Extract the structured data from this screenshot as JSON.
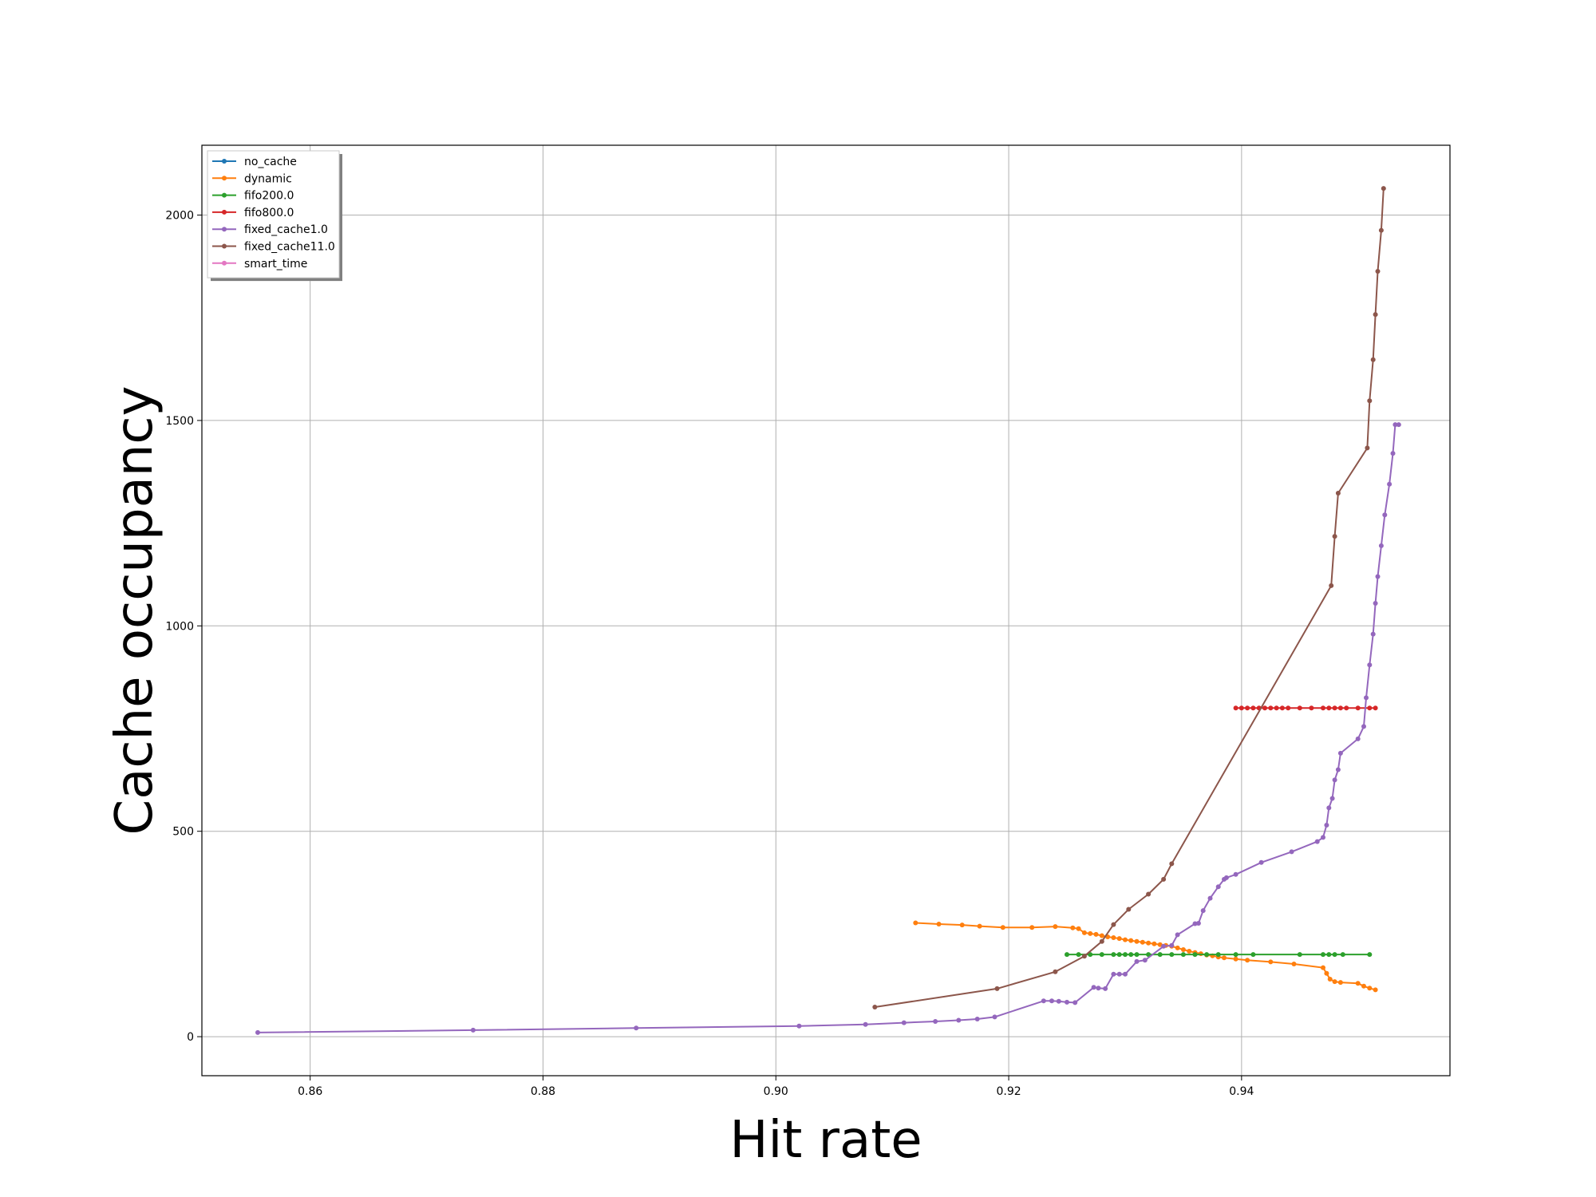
{
  "chart_data": {
    "type": "line",
    "title": "",
    "xlabel": "Hit rate",
    "ylabel": "Cache occupancy",
    "xlim": [
      0.8507,
      0.9579
    ],
    "ylim": [
      -95,
      2170
    ],
    "xticks": [
      0.86,
      0.88,
      0.9,
      0.92,
      0.94
    ],
    "xtick_labels": [
      "0.86",
      "0.88",
      "0.90",
      "0.92",
      "0.94"
    ],
    "yticks": [
      0,
      500,
      1000,
      1500,
      2000
    ],
    "ytick_labels": [
      "0",
      "500",
      "1000",
      "1500",
      "2000"
    ],
    "grid": true,
    "legend_position": "upper-left",
    "series": [
      {
        "name": "no_cache",
        "color": "#1f77b4",
        "x": [],
        "y": []
      },
      {
        "name": "dynamic",
        "color": "#ff7f0e",
        "x": [
          0.912,
          0.914,
          0.916,
          0.9175,
          0.9195,
          0.922,
          0.924,
          0.9255,
          0.926,
          0.9265,
          0.927,
          0.9275,
          0.928,
          0.9285,
          0.929,
          0.9295,
          0.93,
          0.9305,
          0.931,
          0.9315,
          0.932,
          0.9325,
          0.933,
          0.9335,
          0.934,
          0.9345,
          0.935,
          0.9355,
          0.936,
          0.9365,
          0.937,
          0.9375,
          0.938,
          0.9385,
          0.9395,
          0.9405,
          0.9425,
          0.9445,
          0.947,
          0.9473,
          0.9476,
          0.948,
          0.9485,
          0.95,
          0.9505,
          0.951,
          0.9515
        ],
        "y": [
          277,
          274,
          272,
          269,
          266,
          266,
          268,
          265,
          263,
          253,
          251,
          249,
          246,
          243,
          241,
          239,
          236,
          234,
          232,
          230,
          228,
          226,
          224,
          222,
          220,
          216,
          212,
          208,
          205,
          202,
          199,
          197,
          194,
          192,
          189,
          186,
          182,
          177,
          168,
          154,
          140,
          134,
          132,
          130,
          123,
          118,
          114
        ]
      },
      {
        "name": "fifo200.0",
        "color": "#2ca02c",
        "x": [
          0.925,
          0.926,
          0.927,
          0.928,
          0.929,
          0.9295,
          0.93,
          0.9305,
          0.931,
          0.932,
          0.933,
          0.934,
          0.935,
          0.936,
          0.937,
          0.938,
          0.9395,
          0.941,
          0.945,
          0.947,
          0.9475,
          0.948,
          0.9487,
          0.951
        ],
        "y": [
          200,
          200,
          200,
          200,
          200,
          200,
          200,
          200,
          200,
          200,
          200,
          200,
          200,
          200,
          200,
          200,
          200,
          200,
          200,
          200,
          200,
          200,
          200,
          200
        ]
      },
      {
        "name": "fifo800.0",
        "color": "#d62728",
        "x": [
          0.9395,
          0.94,
          0.9405,
          0.941,
          0.9415,
          0.942,
          0.9425,
          0.943,
          0.9435,
          0.944,
          0.945,
          0.946,
          0.947,
          0.9475,
          0.948,
          0.9485,
          0.949,
          0.95,
          0.951,
          0.9515
        ],
        "y": [
          800,
          800,
          800,
          800,
          800,
          800,
          800,
          800,
          800,
          800,
          800,
          800,
          800,
          800,
          800,
          800,
          800,
          800,
          800,
          800
        ]
      },
      {
        "name": "fixed_cache1.0",
        "color": "#9467bd",
        "x": [
          0.8555,
          0.874,
          0.888,
          0.902,
          0.9077,
          0.911,
          0.9137,
          0.9157,
          0.9173,
          0.9188,
          0.923,
          0.9237,
          0.9243,
          0.925,
          0.9257,
          0.9273,
          0.9277,
          0.9283,
          0.929,
          0.9295,
          0.93,
          0.931,
          0.9317,
          0.9333,
          0.934,
          0.9345,
          0.936,
          0.9363,
          0.9367,
          0.9373,
          0.938,
          0.9385,
          0.9387,
          0.9395,
          0.9417,
          0.9443,
          0.9465,
          0.947,
          0.9473,
          0.9475,
          0.9478,
          0.948,
          0.9483,
          0.9485,
          0.95,
          0.9505,
          0.9507,
          0.951,
          0.9513,
          0.9515,
          0.9517,
          0.952,
          0.9523,
          0.9527,
          0.953,
          0.9532,
          0.9535
        ],
        "y": [
          10,
          16,
          21,
          26,
          30,
          34,
          37,
          40,
          43,
          48,
          87,
          87,
          86,
          84,
          83,
          120,
          118,
          117,
          152,
          152,
          152,
          183,
          186,
          220,
          222,
          248,
          275,
          276,
          307,
          337,
          365,
          383,
          387,
          395,
          424,
          450,
          475,
          485,
          515,
          557,
          580,
          625,
          650,
          690,
          725,
          755,
          825,
          905,
          980,
          1055,
          1120,
          1195,
          1270,
          1345,
          1420,
          1490,
          1490
        ]
      },
      {
        "name": "fixed_cache11.0",
        "color": "#8c564b",
        "x": [
          0.9085,
          0.919,
          0.924,
          0.9265,
          0.928,
          0.929,
          0.9303,
          0.932,
          0.9333,
          0.934,
          0.9477,
          0.948,
          0.9483,
          0.9508,
          0.951,
          0.9513,
          0.9515,
          0.9517,
          0.952,
          0.9522
        ],
        "y": [
          72,
          117,
          158,
          196,
          232,
          273,
          310,
          347,
          383,
          421,
          1098,
          1218,
          1323,
          1433,
          1548,
          1648,
          1758,
          1863,
          1963,
          2065
        ]
      },
      {
        "name": "smart_time",
        "color": "#e377c2",
        "x": [],
        "y": []
      }
    ]
  }
}
